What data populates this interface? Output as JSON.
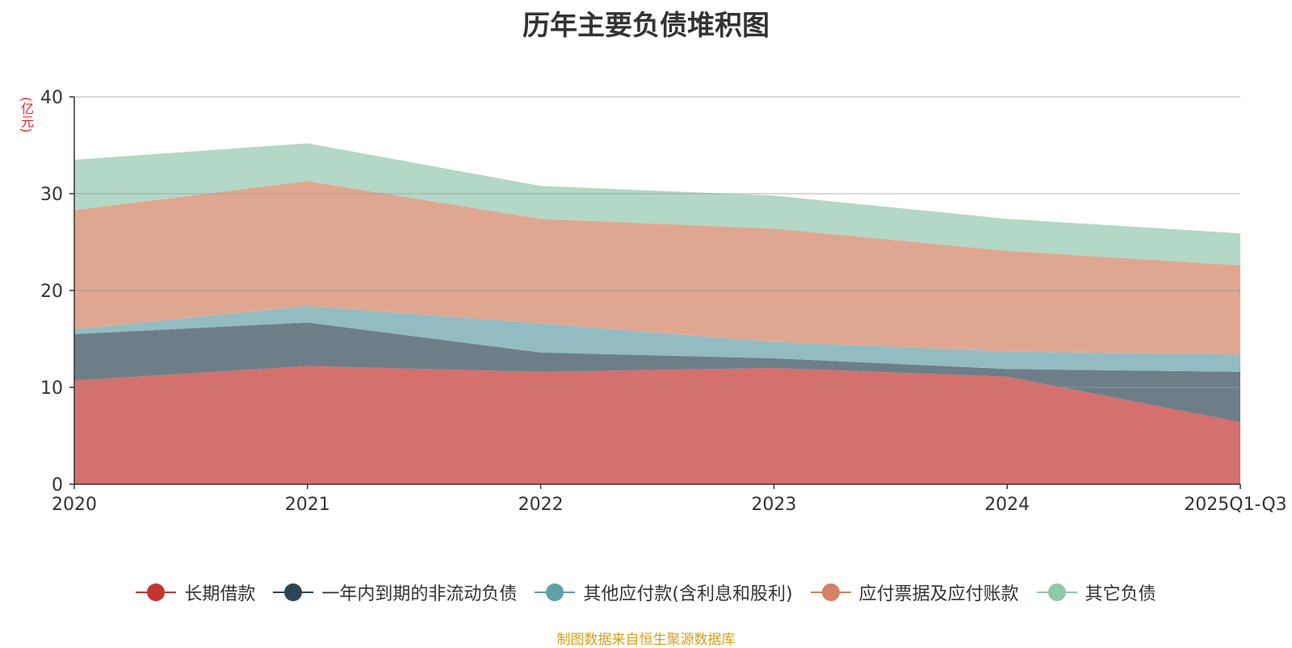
{
  "chart_data": {
    "type": "area",
    "stacked": true,
    "title": "历年主要负债堆积图",
    "ylabel": "(亿元)",
    "xlabel": "",
    "categories": [
      "2020",
      "2021",
      "2022",
      "2023",
      "2024",
      "2025Q1-Q3"
    ],
    "ylim": [
      0,
      40
    ],
    "yticks": [
      0,
      10,
      20,
      30,
      40
    ],
    "grid": true,
    "legend_position": "bottom",
    "series": [
      {
        "name": "长期借款",
        "color": "#c23531",
        "fill": "#d4706d",
        "values": [
          10.7,
          12.2,
          11.6,
          12.0,
          11.1,
          6.4
        ]
      },
      {
        "name": "一年内到期的非流动负债",
        "color": "#2f4554",
        "fill": "#6e7e88",
        "values": [
          4.8,
          4.5,
          2.0,
          1.0,
          0.8,
          5.2
        ]
      },
      {
        "name": "其他应付款(含利息和股利)",
        "color": "#61a0a8",
        "fill": "#92bcc2",
        "values": [
          0.5,
          1.7,
          3.0,
          1.7,
          1.8,
          1.8
        ]
      },
      {
        "name": "应付票据及应付账款",
        "color": "#d48265",
        "fill": "#dfa791",
        "values": [
          12.3,
          12.9,
          10.8,
          11.7,
          10.4,
          9.2
        ]
      },
      {
        "name": "其它负债",
        "color": "#91c7ae",
        "fill": "#b3d8c6",
        "values": [
          5.2,
          3.9,
          3.4,
          3.4,
          3.3,
          3.3
        ]
      }
    ]
  },
  "source": "制图数据来自恒生聚源数据库"
}
